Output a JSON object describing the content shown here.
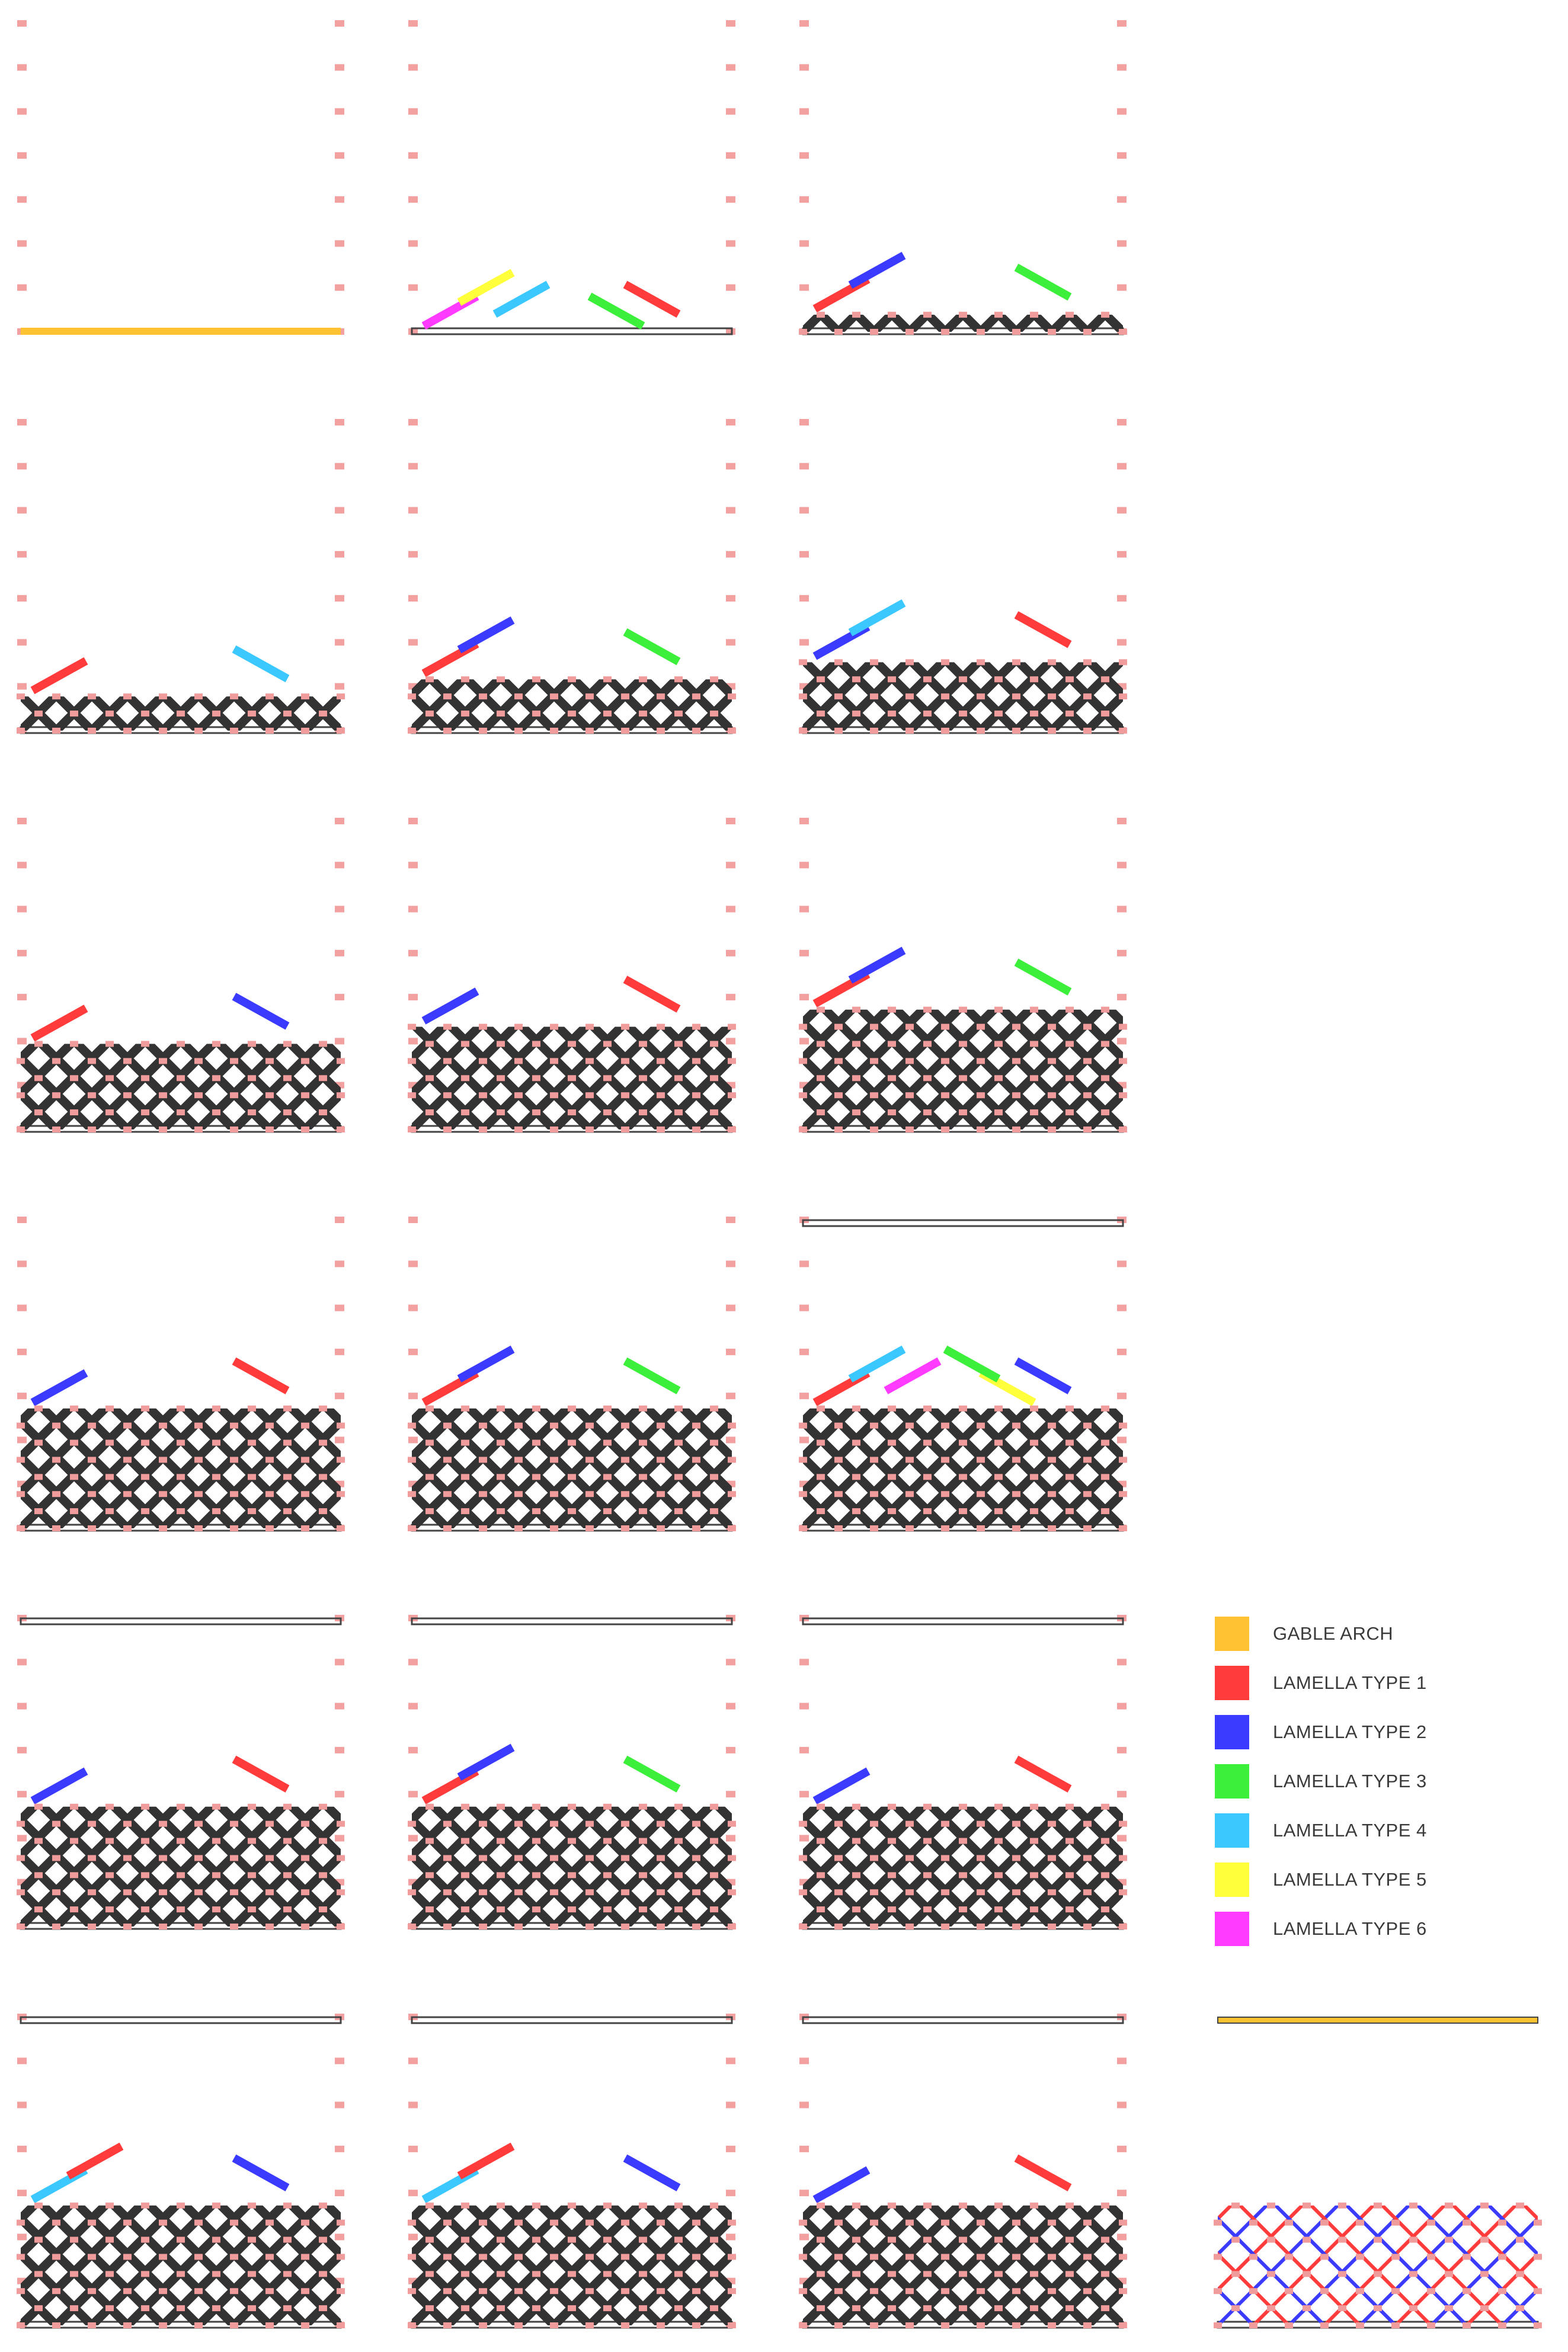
{
  "colors": {
    "frame": "#ffffff",
    "grid_marker": "#f2a0a0",
    "node_marker": "#f19c9c",
    "installed_lamella": "#333333",
    "temporary_lamella": "#cccccc",
    "baseline_dark": "#444444"
  },
  "panels": [
    {
      "step": 1,
      "stage": 0,
      "new": [],
      "arch_top": false,
      "arch_bottom": true
    },
    {
      "step": 2,
      "stage": 0,
      "new": [
        "type6",
        "type1",
        "type5",
        "type3",
        "type4"
      ]
    },
    {
      "step": 3,
      "stage": 1,
      "new": [
        "type1",
        "type3",
        "type2"
      ]
    },
    {
      "step": 4,
      "stage": 2,
      "new": [
        "type1",
        "type4"
      ]
    },
    {
      "step": 5,
      "stage": 3,
      "new": [
        "type1",
        "type3",
        "type2"
      ]
    },
    {
      "step": 6,
      "stage": 4,
      "new": [
        "type2",
        "type1",
        "type4"
      ]
    },
    {
      "step": 7,
      "stage": 5,
      "new": [
        "type1",
        "type2"
      ]
    },
    {
      "step": 8,
      "stage": 6,
      "new": [
        "type2",
        "type1"
      ]
    },
    {
      "step": 9,
      "stage": 7,
      "new": [
        "type1",
        "type3",
        "type2"
      ]
    },
    {
      "step": 10,
      "stage": 8,
      "new": [
        "type2",
        "type1"
      ]
    },
    {
      "step": 11,
      "stage": 9,
      "new": [
        "type1",
        "type3",
        "type2"
      ]
    },
    {
      "step": 12,
      "stage": 10,
      "new": [
        "type1",
        "type2",
        "type4",
        "type5",
        "type6",
        "type3"
      ],
      "arch_top": true
    },
    {
      "step": 13,
      "stage": 11,
      "new": [
        "type2",
        "type1"
      ],
      "arch_top": true
    },
    {
      "step": 14,
      "stage": 12,
      "new": [
        "type1",
        "type3",
        "type2"
      ],
      "arch_top": true
    },
    {
      "step": 15,
      "stage": 13,
      "new": [
        "type2",
        "type1"
      ],
      "arch_top": true
    },
    {
      "step": 16,
      "stage": 14,
      "new": [
        "type4",
        "type2",
        "type1"
      ],
      "arch_top": true
    },
    {
      "step": 17,
      "stage": 15,
      "new": [
        "type4",
        "type2",
        "type1"
      ],
      "arch_top": true
    },
    {
      "step": 18,
      "stage": 16,
      "new": [
        "type2",
        "type1"
      ],
      "arch_top": true
    },
    {
      "step": 19,
      "stage": 17,
      "new": [],
      "arch_top": true,
      "final": true
    }
  ],
  "legend": {
    "items": [
      {
        "label": "GABLE ARCH",
        "color": "#ffc233"
      },
      {
        "label": "LAMELLA TYPE 1",
        "color": "#ff3b3b"
      },
      {
        "label": "LAMELLA TYPE 2",
        "color": "#3b3bff"
      },
      {
        "label": "LAMELLA TYPE 3",
        "color": "#3bef3b"
      },
      {
        "label": "LAMELLA TYPE 4",
        "color": "#3bc8ff"
      },
      {
        "label": "LAMELLA TYPE 5",
        "color": "#ffff3b"
      },
      {
        "label": "LAMELLA TYPE 6",
        "color": "#ff3bff"
      }
    ]
  }
}
